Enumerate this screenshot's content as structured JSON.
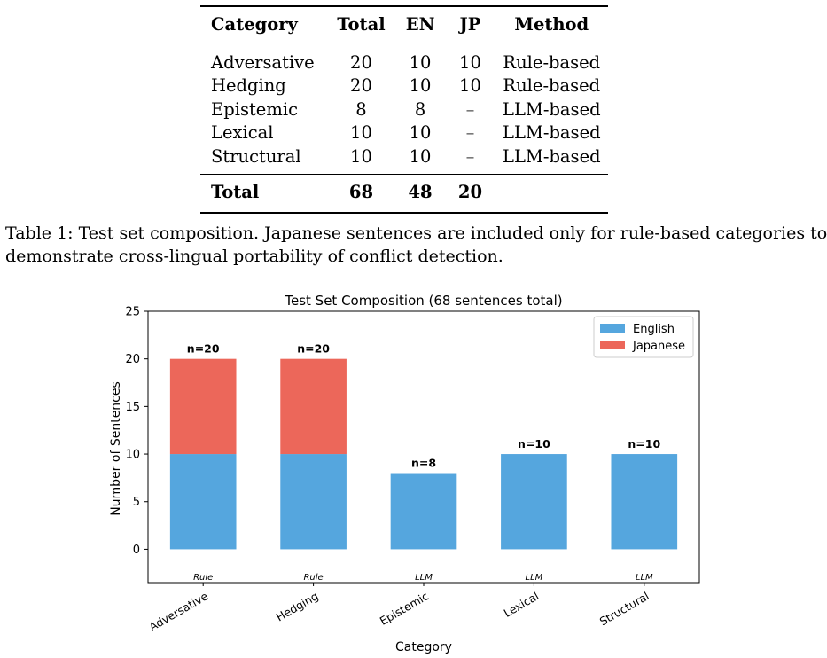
{
  "table": {
    "headers": [
      "Category",
      "Total",
      "EN",
      "JP",
      "Method"
    ],
    "rows": [
      [
        "Adversative",
        "20",
        "10",
        "10",
        "Rule-based"
      ],
      [
        "Hedging",
        "20",
        "10",
        "10",
        "Rule-based"
      ],
      [
        "Epistemic",
        "8",
        "8",
        "–",
        "LLM-based"
      ],
      [
        "Lexical",
        "10",
        "10",
        "–",
        "LLM-based"
      ],
      [
        "Structural",
        "10",
        "10",
        "–",
        "LLM-based"
      ]
    ],
    "total_row": [
      "Total",
      "68",
      "48",
      "20",
      ""
    ]
  },
  "caption": {
    "line1": "Table 1: Test set composition. Japanese sentences are included only for rule-based categories to",
    "line2": "demonstrate cross-lingual portability of conflict detection."
  },
  "chart_data": {
    "type": "bar",
    "stacked": true,
    "title": "Test Set Composition (68 sentences total)",
    "xlabel": "Category",
    "ylabel": "Number of Sentences",
    "categories": [
      "Adversative",
      "Hedging",
      "Epistemic",
      "Lexical",
      "Structural"
    ],
    "series": [
      {
        "name": "English",
        "values": [
          10,
          10,
          8,
          10,
          10
        ],
        "color": "#55a6de"
      },
      {
        "name": "Japanese",
        "values": [
          10,
          10,
          0,
          0,
          0
        ],
        "color": "#ec675a"
      }
    ],
    "bar_labels": [
      "n=20",
      "n=20",
      "n=8",
      "n=10",
      "n=10"
    ],
    "method_labels": [
      "Rule",
      "Rule",
      "LLM",
      "LLM",
      "LLM"
    ],
    "ylim": [
      -3.5,
      25
    ],
    "yticks": [
      0,
      5,
      10,
      15,
      20,
      25
    ],
    "legend_position": "upper right",
    "grid": false
  }
}
